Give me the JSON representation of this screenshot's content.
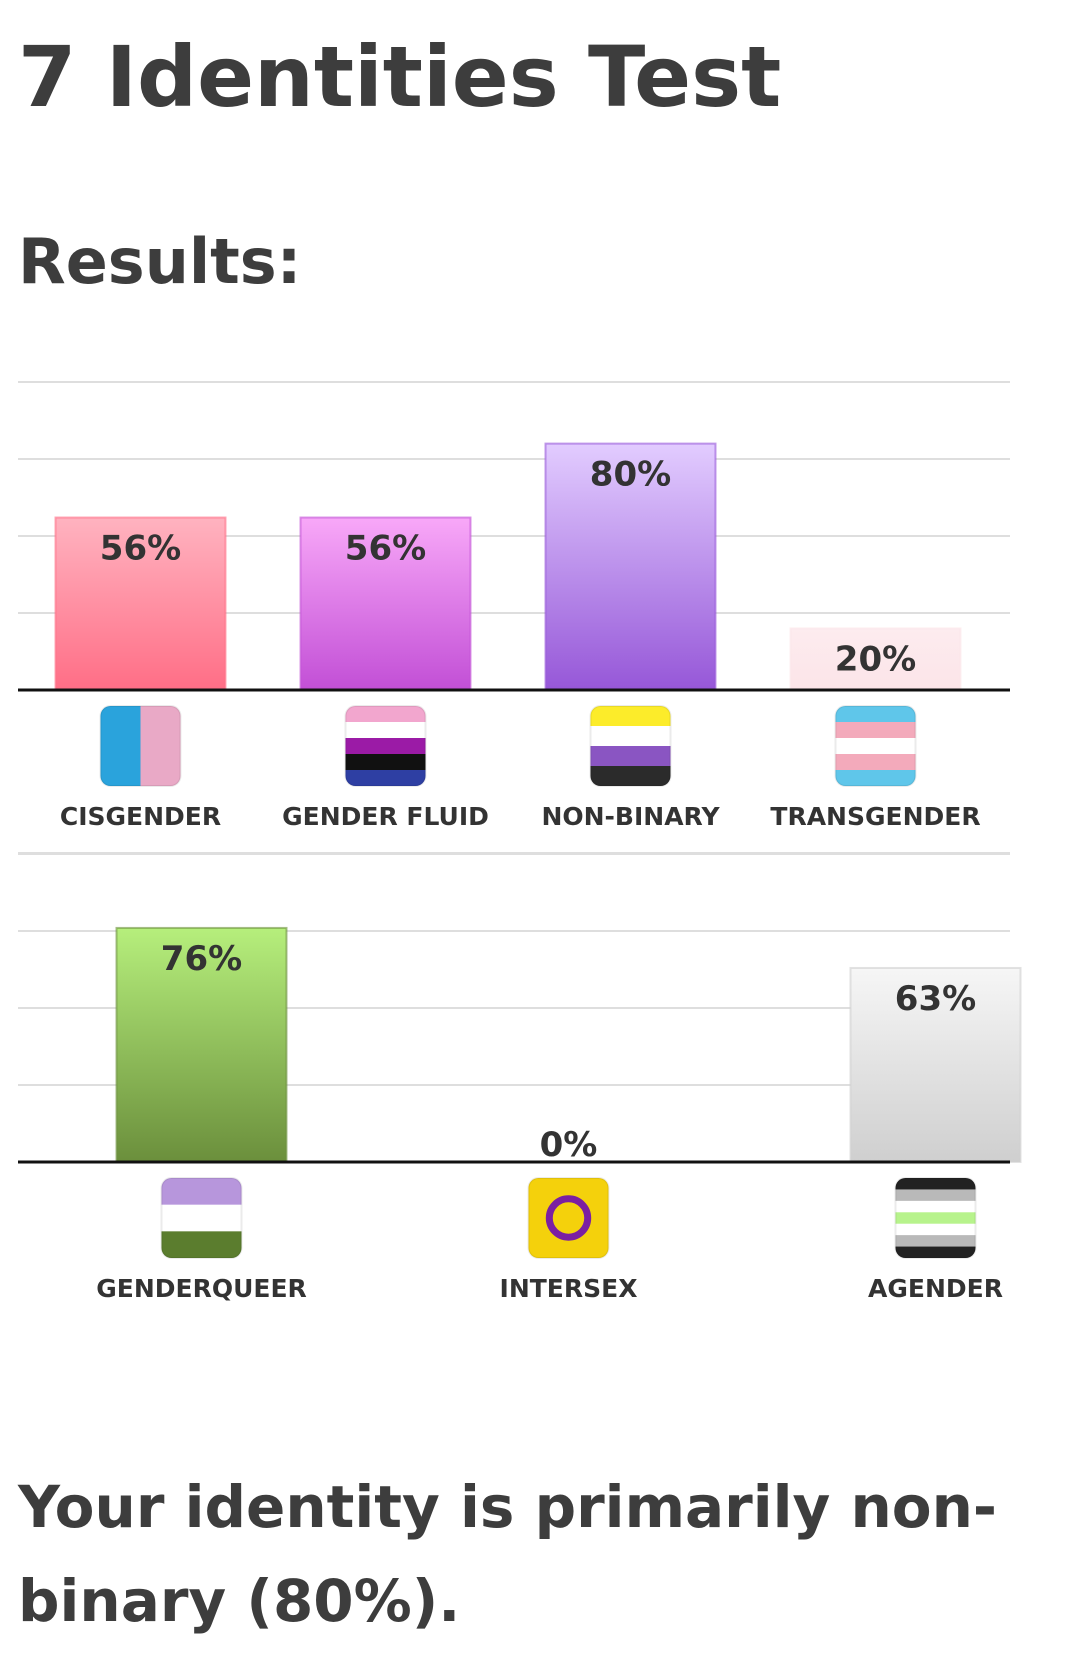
{
  "page": {
    "title": "7 Identities Test",
    "results_heading": "Results:",
    "summary": "Your identity is primarily non-binary (80%)."
  },
  "chart_data": [
    {
      "type": "bar",
      "categories": [
        "CISGENDER",
        "GENDER FLUID",
        "NON-BINARY",
        "TRANSGENDER"
      ],
      "values": [
        56,
        56,
        80,
        20
      ],
      "value_labels": [
        "56%",
        "56%",
        "80%",
        "20%"
      ],
      "icons": [
        "cisgender-flag-icon",
        "gender-fluid-flag-icon",
        "non-binary-flag-icon",
        "transgender-flag-icon"
      ],
      "bar_colors": [
        [
          "#ffb3c0",
          "#ff6e86"
        ],
        [
          "#f8a8f8",
          "#c24fd6"
        ],
        [
          "#e2ccff",
          "#9657d8"
        ],
        [
          "#fdecef",
          "#fce4e8"
        ]
      ],
      "ylim": [
        0,
        100
      ],
      "grid": true
    },
    {
      "type": "bar",
      "categories": [
        "GENDERQUEER",
        "INTERSEX",
        "AGENDER"
      ],
      "values": [
        76,
        0,
        63
      ],
      "value_labels": [
        "76%",
        "0%",
        "63%"
      ],
      "icons": [
        "genderqueer-flag-icon",
        "intersex-flag-icon",
        "agender-flag-icon"
      ],
      "bar_colors": [
        [
          "#b6ef7c",
          "#6b8f3c"
        ],
        [
          "#f3d10a",
          "#f3d10a"
        ],
        [
          "#f6f6f6",
          "#cfcfcf"
        ]
      ],
      "ylim": [
        0,
        100
      ],
      "grid": true
    }
  ]
}
